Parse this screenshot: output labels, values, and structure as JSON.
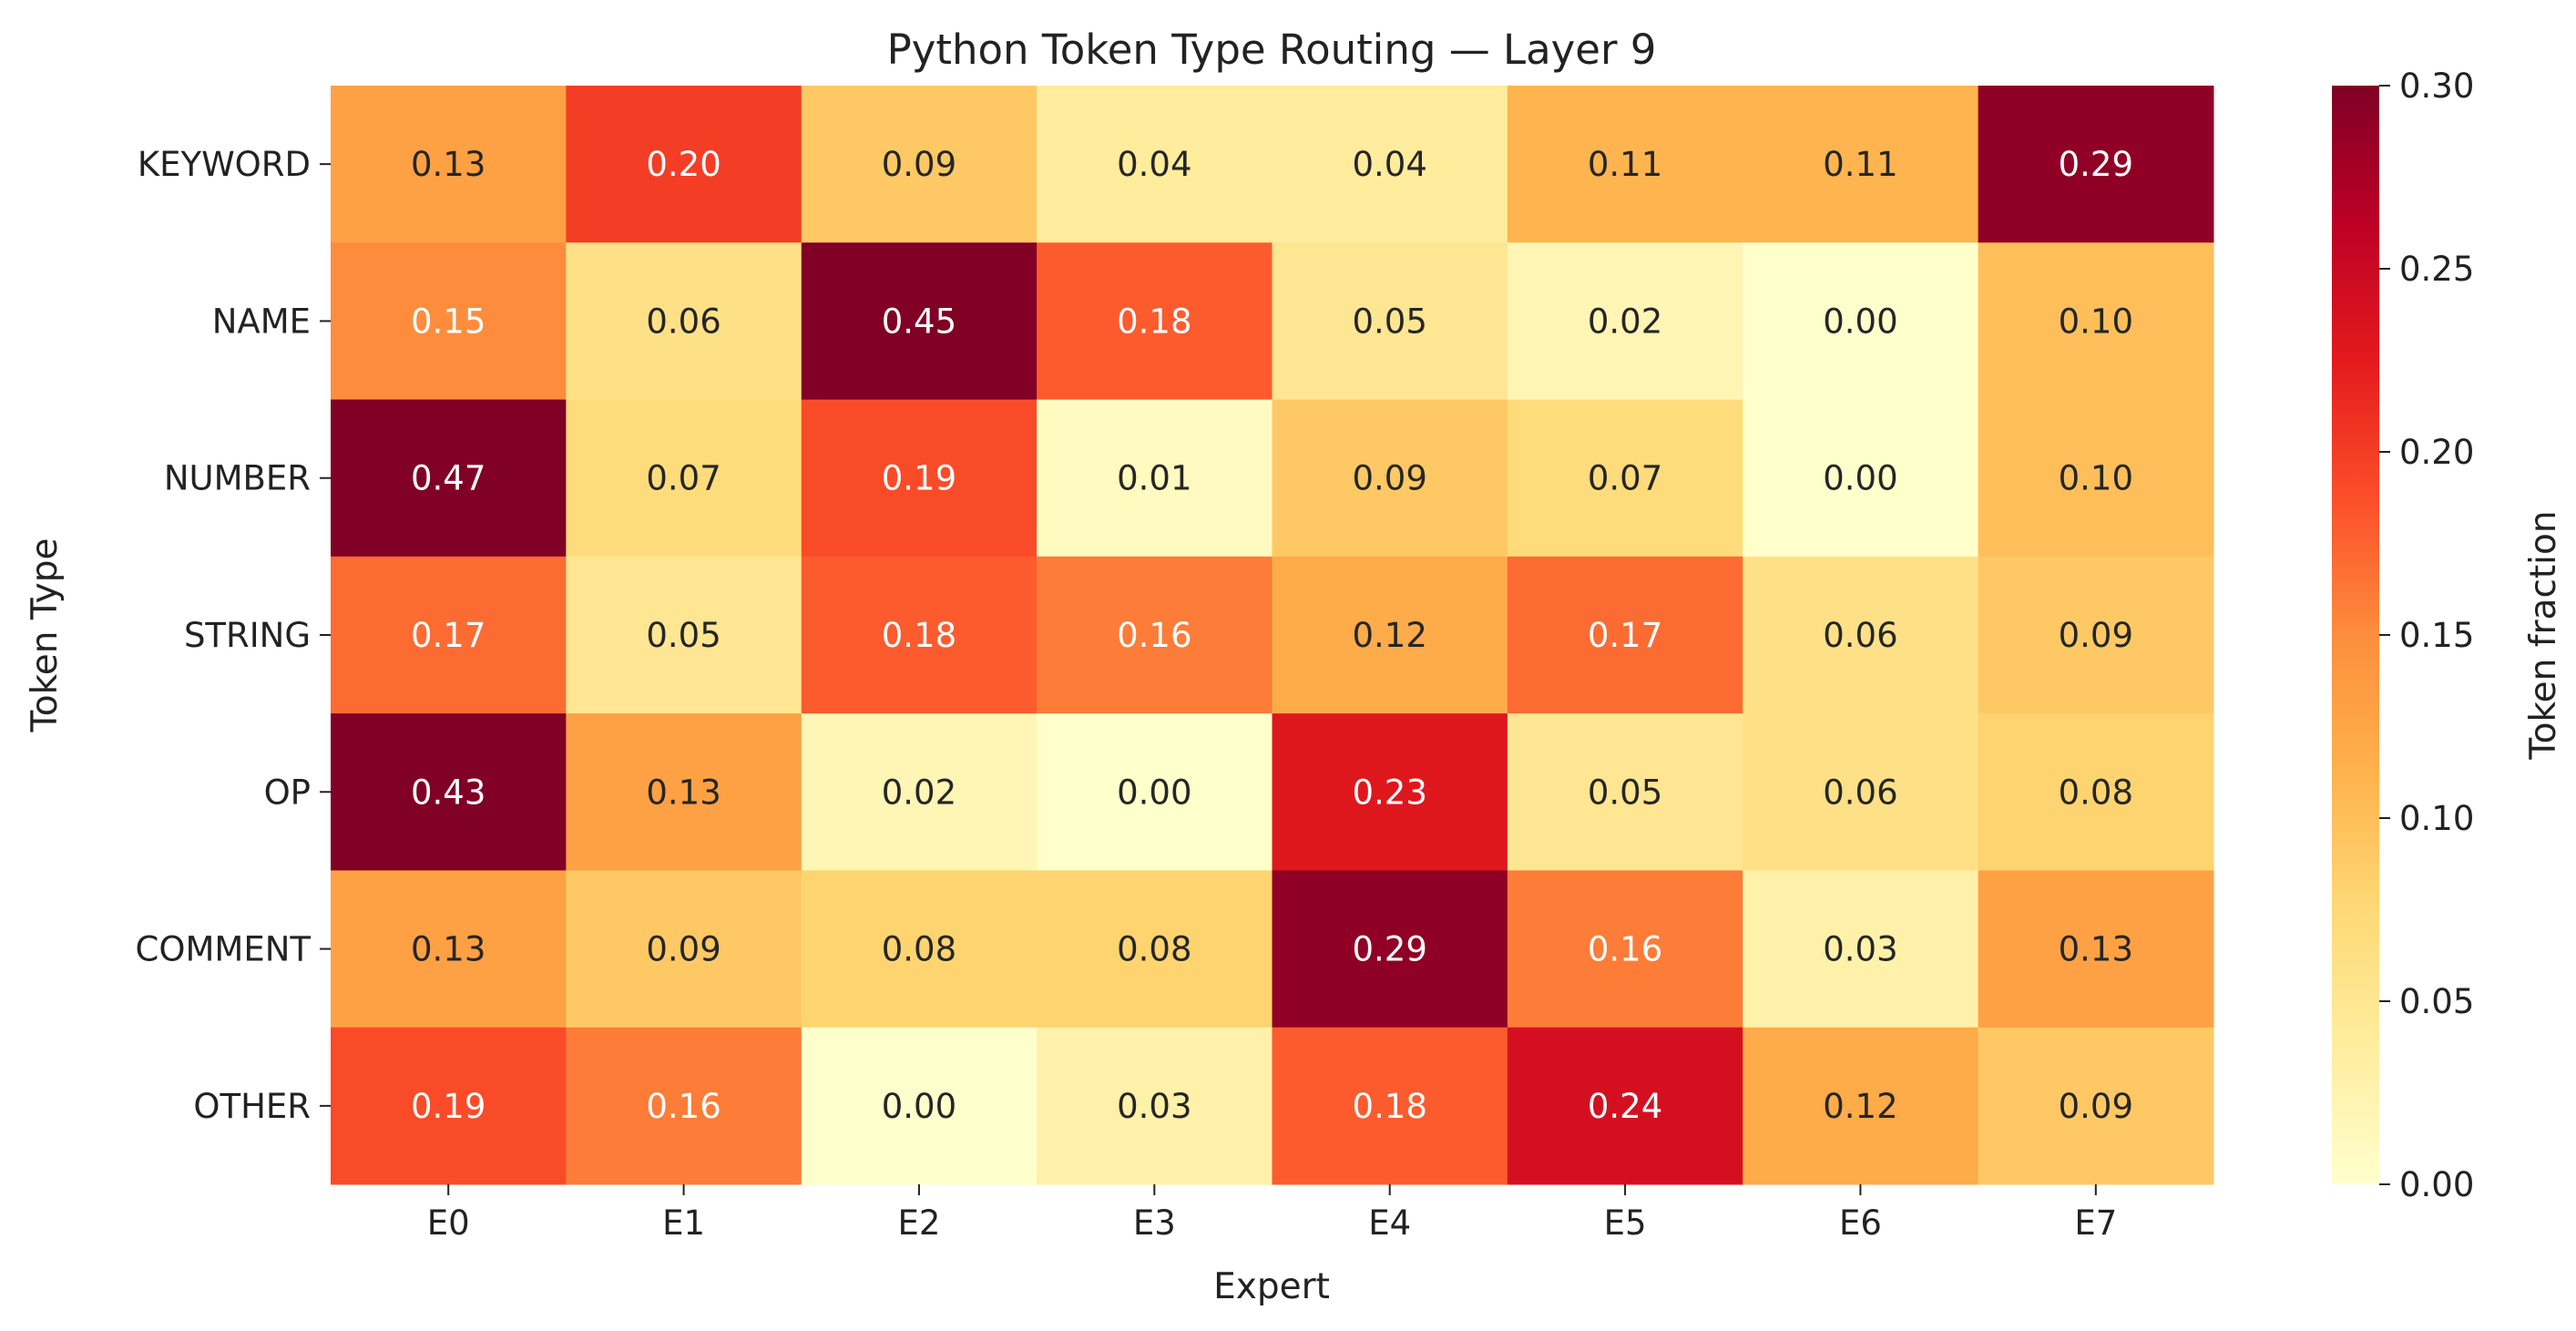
{
  "chart_data": {
    "type": "heatmap",
    "title": "Python Token Type Routing — Layer 9",
    "xlabel": "Expert",
    "ylabel": "Token Type",
    "x_categories": [
      "E0",
      "E1",
      "E2",
      "E3",
      "E4",
      "E5",
      "E6",
      "E7"
    ],
    "y_categories": [
      "KEYWORD",
      "NAME",
      "NUMBER",
      "STRING",
      "OP",
      "COMMENT",
      "OTHER"
    ],
    "values": [
      [
        0.13,
        0.2,
        0.09,
        0.04,
        0.04,
        0.11,
        0.11,
        0.29
      ],
      [
        0.15,
        0.06,
        0.45,
        0.18,
        0.05,
        0.02,
        0.0,
        0.1
      ],
      [
        0.47,
        0.07,
        0.19,
        0.01,
        0.09,
        0.07,
        0.0,
        0.1
      ],
      [
        0.17,
        0.05,
        0.18,
        0.16,
        0.12,
        0.17,
        0.06,
        0.09
      ],
      [
        0.43,
        0.13,
        0.02,
        0.0,
        0.23,
        0.05,
        0.06,
        0.08
      ],
      [
        0.13,
        0.09,
        0.08,
        0.08,
        0.29,
        0.16,
        0.03,
        0.13
      ],
      [
        0.19,
        0.16,
        0.0,
        0.03,
        0.18,
        0.24,
        0.12,
        0.09
      ]
    ],
    "value_format": "0.00",
    "colormap": "YlOrRd",
    "colormap_stops": [
      "#ffffcc",
      "#ffeda0",
      "#fed976",
      "#feb24c",
      "#fd8d3c",
      "#fc4e2a",
      "#e31a1c",
      "#bd0026",
      "#800026"
    ],
    "colorbar": {
      "label": "Token fraction",
      "range": [
        0,
        0.3
      ],
      "ticks": [
        "0.00",
        "0.05",
        "0.10",
        "0.15",
        "0.20",
        "0.25",
        "0.30"
      ],
      "placement": "right"
    },
    "grid": false
  }
}
